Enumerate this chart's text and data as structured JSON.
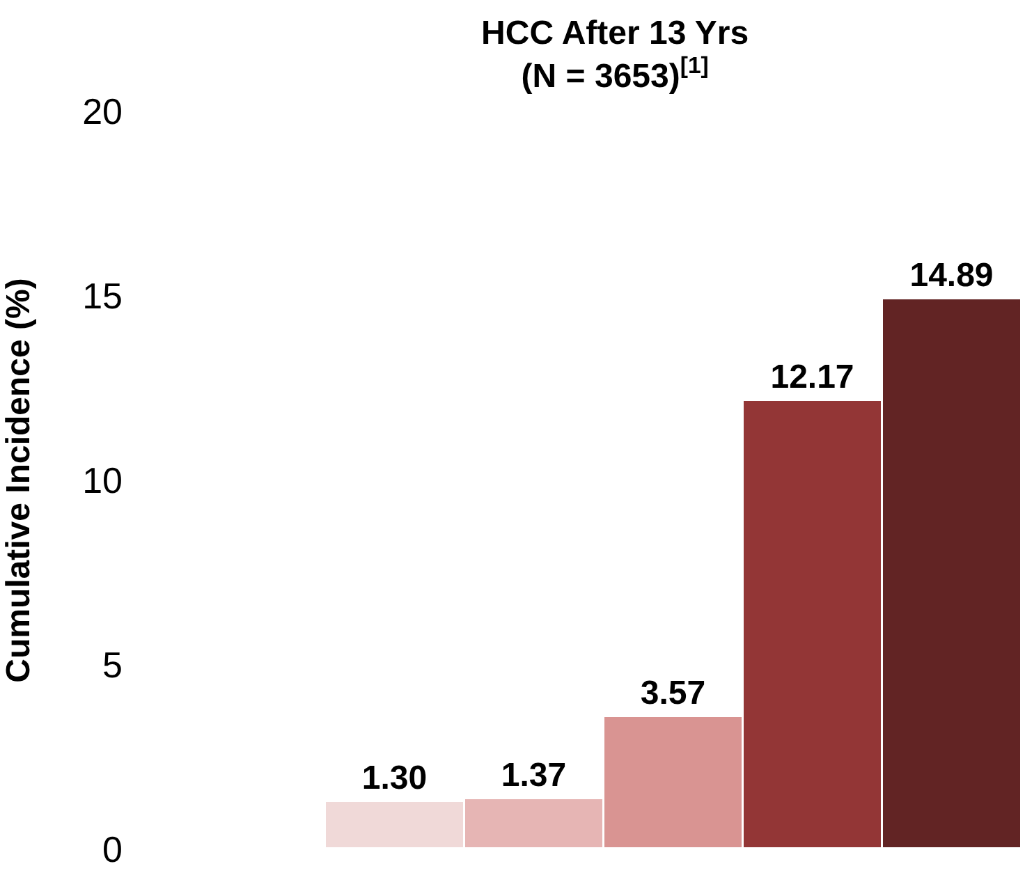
{
  "chart_data": {
    "type": "bar",
    "title": "HCC After 13 Yrs\n(N = 3653)$^{[1]}$",
    "ylabel": "Cumulative Incidence (%)",
    "categories": [
      null,
      null,
      null,
      null,
      null
    ],
    "values": [
      1.3,
      1.37,
      3.57,
      12.17,
      14.89
    ],
    "value_labels": [
      "1.30",
      "1.37",
      "3.57",
      "12.17",
      "14.89"
    ],
    "colors": [
      "#f0d9d8",
      "#e6b5b4",
      "#d99492",
      "#933636",
      "#622424"
    ],
    "ylim": [
      0,
      20
    ],
    "yticks": [
      0,
      5,
      10,
      15,
      20
    ]
  }
}
